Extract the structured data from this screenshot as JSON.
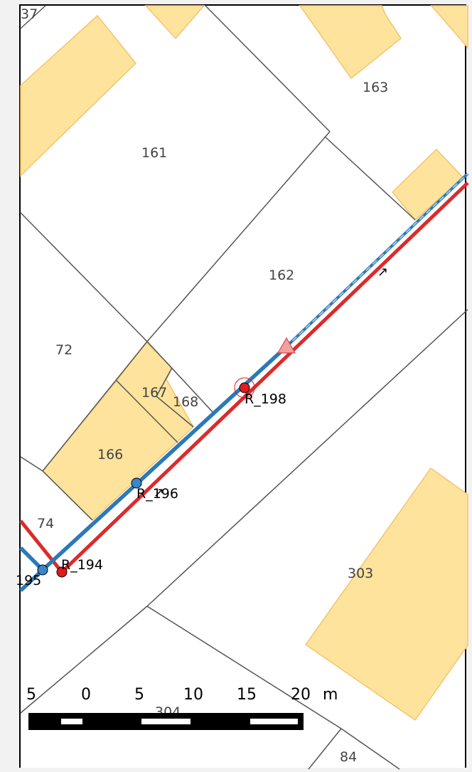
{
  "colors": {
    "building_fill": "#fde39c",
    "building_stroke": "#f5c370",
    "parcel_stroke": "#555555",
    "pipe_blue": "#2b79b8",
    "pipe_red": "#dc2a2a",
    "pipe_light": "#a9c3e0",
    "marker_red": "#e11b1b",
    "marker_blue": "#3a86c8",
    "triangle_fill": "#f1a1a1",
    "triangle_stroke": "#d34a4a"
  },
  "parcel_labels": {
    "p37": "37",
    "p163": "163",
    "p161": "161",
    "p162": "162",
    "p72": "72",
    "p167": "167",
    "p168": "168",
    "p166": "166",
    "p74": "74",
    "p195": "195",
    "p303": "303",
    "p304": "304",
    "p84": "84"
  },
  "point_labels": {
    "r198": "R_198",
    "r196": "R_196",
    "r194": "R_194"
  },
  "icons": {
    "flow_arrow": "↗"
  },
  "scale_bar": {
    "ticks": [
      "5",
      "0",
      "5",
      "10",
      "15",
      "20"
    ],
    "unit": "m"
  }
}
